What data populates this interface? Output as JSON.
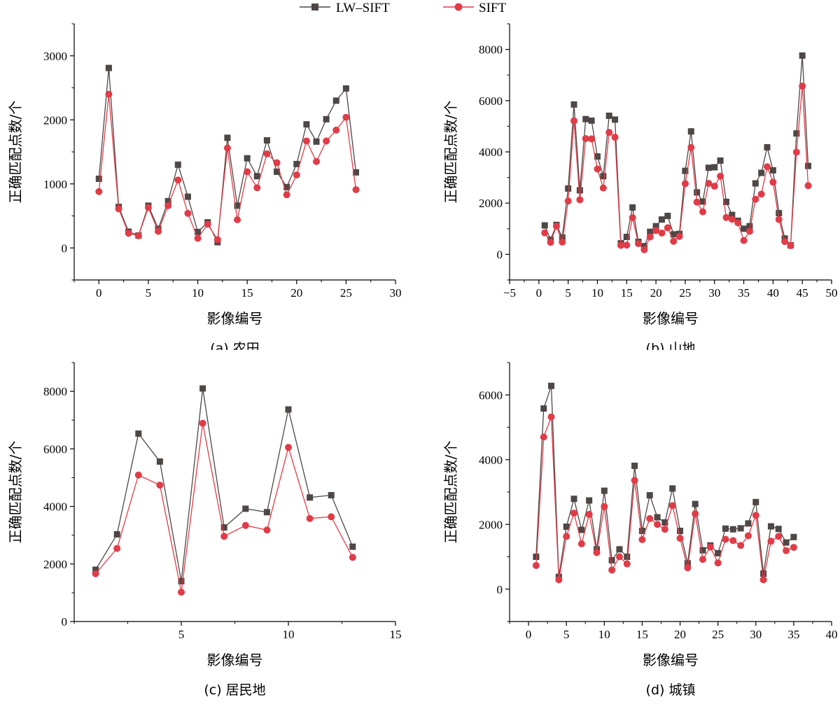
{
  "legend": {
    "lw_sift": "LW–SIFT",
    "sift": "SIFT"
  },
  "colors": {
    "lw_sift": "#4d4745",
    "sift": "#e03c48"
  },
  "chart_data": [
    {
      "type": "line",
      "caption": "(a) 农田",
      "xlabel": "影像编号",
      "ylabel": "正确匹配点数/个",
      "xlim": [
        -2.5,
        30
      ],
      "ylim": [
        -500,
        3500
      ],
      "xticks": [
        0,
        5,
        10,
        15,
        20,
        25,
        30
      ],
      "yticks": [
        0,
        1000,
        2000,
        3000
      ],
      "x": [
        0,
        1,
        2,
        3,
        4,
        5,
        6,
        7,
        8,
        9,
        10,
        11,
        12,
        13,
        14,
        15,
        16,
        17,
        18,
        19,
        20,
        21,
        22,
        23,
        24,
        25,
        26
      ],
      "series": [
        {
          "name": "LW–SIFT",
          "values": [
            1080,
            2810,
            640,
            255,
            195,
            660,
            300,
            730,
            1300,
            800,
            250,
            400,
            90,
            1720,
            660,
            1400,
            1120,
            1680,
            1190,
            950,
            1310,
            1930,
            1660,
            2010,
            2300,
            2490,
            1180
          ]
        },
        {
          "name": "SIFT",
          "values": [
            880,
            2400,
            610,
            230,
            190,
            630,
            260,
            660,
            1060,
            540,
            150,
            370,
            130,
            1560,
            440,
            1190,
            940,
            1470,
            1330,
            830,
            1140,
            1670,
            1350,
            1670,
            1840,
            2040,
            910
          ]
        }
      ]
    },
    {
      "type": "line",
      "caption": "(b) 山地",
      "xlabel": "影像编号",
      "ylabel": "正确匹配点数/个",
      "xlim": [
        -5,
        50
      ],
      "ylim": [
        -1000,
        9000
      ],
      "xticks": [
        -5,
        0,
        5,
        10,
        15,
        20,
        25,
        30,
        35,
        40,
        45,
        50
      ],
      "yticks": [
        0,
        2000,
        4000,
        6000,
        8000
      ],
      "x": [
        1,
        2,
        3,
        4,
        5,
        6,
        7,
        8,
        9,
        10,
        11,
        12,
        13,
        14,
        15,
        16,
        17,
        18,
        19,
        20,
        21,
        22,
        23,
        24,
        25,
        26,
        27,
        28,
        29,
        30,
        31,
        32,
        33,
        34,
        35,
        36,
        37,
        38,
        39,
        40,
        41,
        42,
        43,
        44,
        45,
        46
      ],
      "series": [
        {
          "name": "LW–SIFT",
          "values": [
            1130,
            570,
            1150,
            660,
            2570,
            5850,
            2500,
            5280,
            5220,
            3820,
            3050,
            5410,
            5260,
            430,
            680,
            1830,
            490,
            320,
            880,
            1100,
            1360,
            1500,
            780,
            800,
            3260,
            4800,
            2420,
            2060,
            3380,
            3400,
            3660,
            2050,
            1540,
            1310,
            1000,
            1100,
            2770,
            3180,
            4180,
            3280,
            1610,
            620,
            350,
            4720,
            7760,
            3450
          ]
        },
        {
          "name": "SIFT",
          "values": [
            840,
            470,
            1100,
            480,
            2080,
            5210,
            2130,
            4520,
            4510,
            3330,
            2590,
            4760,
            4570,
            350,
            360,
            1430,
            420,
            180,
            680,
            930,
            830,
            1040,
            510,
            700,
            2760,
            4170,
            2040,
            1660,
            2770,
            2660,
            3050,
            1440,
            1370,
            1230,
            540,
            900,
            2150,
            2350,
            3420,
            2820,
            1360,
            500,
            340,
            3990,
            6570,
            2680
          ]
        }
      ]
    },
    {
      "type": "line",
      "caption": "(c) 居民地",
      "xlabel": "影像编号",
      "ylabel": "正确匹配点数/个",
      "xlim": [
        0,
        15
      ],
      "ylim": [
        0,
        9000
      ],
      "xticks": [
        5,
        10,
        15
      ],
      "yticks": [
        0,
        2000,
        4000,
        6000,
        8000
      ],
      "x": [
        1,
        2,
        3,
        4,
        5,
        6,
        7,
        8,
        9,
        10,
        11,
        12,
        13
      ],
      "series": [
        {
          "name": "LW–SIFT",
          "values": [
            1800,
            3030,
            6530,
            5560,
            1400,
            8100,
            3270,
            3920,
            3800,
            7370,
            4310,
            4390,
            2600
          ]
        },
        {
          "name": "SIFT",
          "values": [
            1660,
            2540,
            5090,
            4740,
            1020,
            6890,
            2960,
            3340,
            3180,
            6050,
            3580,
            3640,
            2230
          ]
        }
      ]
    },
    {
      "type": "line",
      "caption": "(d) 城镇",
      "xlabel": "影像编号",
      "ylabel": "正确匹配点数/个",
      "xlim": [
        -2.5,
        40
      ],
      "ylim": [
        -1000,
        7000
      ],
      "xticks": [
        0,
        5,
        10,
        15,
        20,
        25,
        30,
        35,
        40
      ],
      "yticks": [
        0,
        2000,
        4000,
        6000
      ],
      "x": [
        1,
        2,
        3,
        4,
        5,
        6,
        7,
        8,
        9,
        10,
        11,
        12,
        13,
        14,
        15,
        16,
        17,
        18,
        19,
        20,
        21,
        22,
        23,
        24,
        25,
        26,
        27,
        28,
        29,
        30,
        31,
        32,
        33,
        34,
        35
      ],
      "series": [
        {
          "name": "LW–SIFT",
          "values": [
            1000,
            5580,
            6280,
            380,
            1930,
            2790,
            1830,
            2740,
            1230,
            3040,
            890,
            1230,
            1000,
            3810,
            1800,
            2900,
            2220,
            2060,
            3110,
            1800,
            800,
            2630,
            1200,
            1350,
            1110,
            1870,
            1850,
            1880,
            2030,
            2690,
            480,
            1940,
            1860,
            1440,
            1610
          ]
        },
        {
          "name": "SIFT",
          "values": [
            730,
            4700,
            5320,
            290,
            1630,
            2350,
            1400,
            2310,
            1130,
            2550,
            590,
            1000,
            780,
            3360,
            1530,
            2180,
            2000,
            1850,
            2580,
            1570,
            660,
            2330,
            920,
            1300,
            810,
            1540,
            1500,
            1350,
            1650,
            2280,
            290,
            1480,
            1630,
            1190,
            1290
          ]
        }
      ]
    }
  ]
}
